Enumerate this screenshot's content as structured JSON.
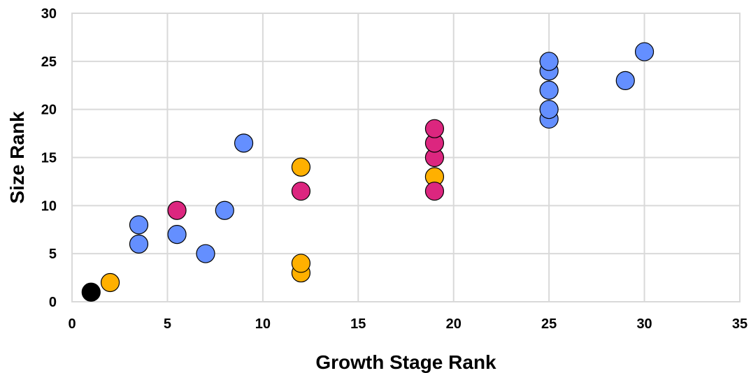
{
  "chart_data": {
    "type": "scatter",
    "title": "",
    "xlabel": "Growth Stage Rank",
    "ylabel": "Size Rank",
    "xlim": [
      0,
      35
    ],
    "ylim": [
      0,
      30
    ],
    "xticks": [
      0,
      5,
      10,
      15,
      20,
      25,
      30,
      35
    ],
    "yticks": [
      0,
      5,
      10,
      15,
      20,
      25,
      30
    ],
    "grid": true,
    "legend": "none",
    "series": [
      {
        "color": "#000000",
        "points": [
          {
            "x": 1,
            "y": 1
          }
        ]
      },
      {
        "color": "#ffb000",
        "points": [
          {
            "x": 2,
            "y": 2
          },
          {
            "x": 12,
            "y": 3
          },
          {
            "x": 12,
            "y": 4
          },
          {
            "x": 12,
            "y": 14
          },
          {
            "x": 19,
            "y": 13
          }
        ]
      },
      {
        "color": "#dc267f",
        "points": [
          {
            "x": 5.5,
            "y": 9.5
          },
          {
            "x": 12,
            "y": 11.5
          },
          {
            "x": 19,
            "y": 11.5
          },
          {
            "x": 19,
            "y": 15
          },
          {
            "x": 19,
            "y": 16.5
          },
          {
            "x": 19,
            "y": 18
          }
        ]
      },
      {
        "color": "#648fff",
        "points": [
          {
            "x": 3.5,
            "y": 6
          },
          {
            "x": 3.5,
            "y": 8
          },
          {
            "x": 5.5,
            "y": 7
          },
          {
            "x": 7,
            "y": 5
          },
          {
            "x": 8,
            "y": 9.5
          },
          {
            "x": 9,
            "y": 16.5
          },
          {
            "x": 25,
            "y": 19
          },
          {
            "x": 25,
            "y": 20
          },
          {
            "x": 25,
            "y": 22
          },
          {
            "x": 25,
            "y": 24
          },
          {
            "x": 25,
            "y": 25
          },
          {
            "x": 29,
            "y": 23
          },
          {
            "x": 30,
            "y": 26
          }
        ]
      }
    ]
  }
}
